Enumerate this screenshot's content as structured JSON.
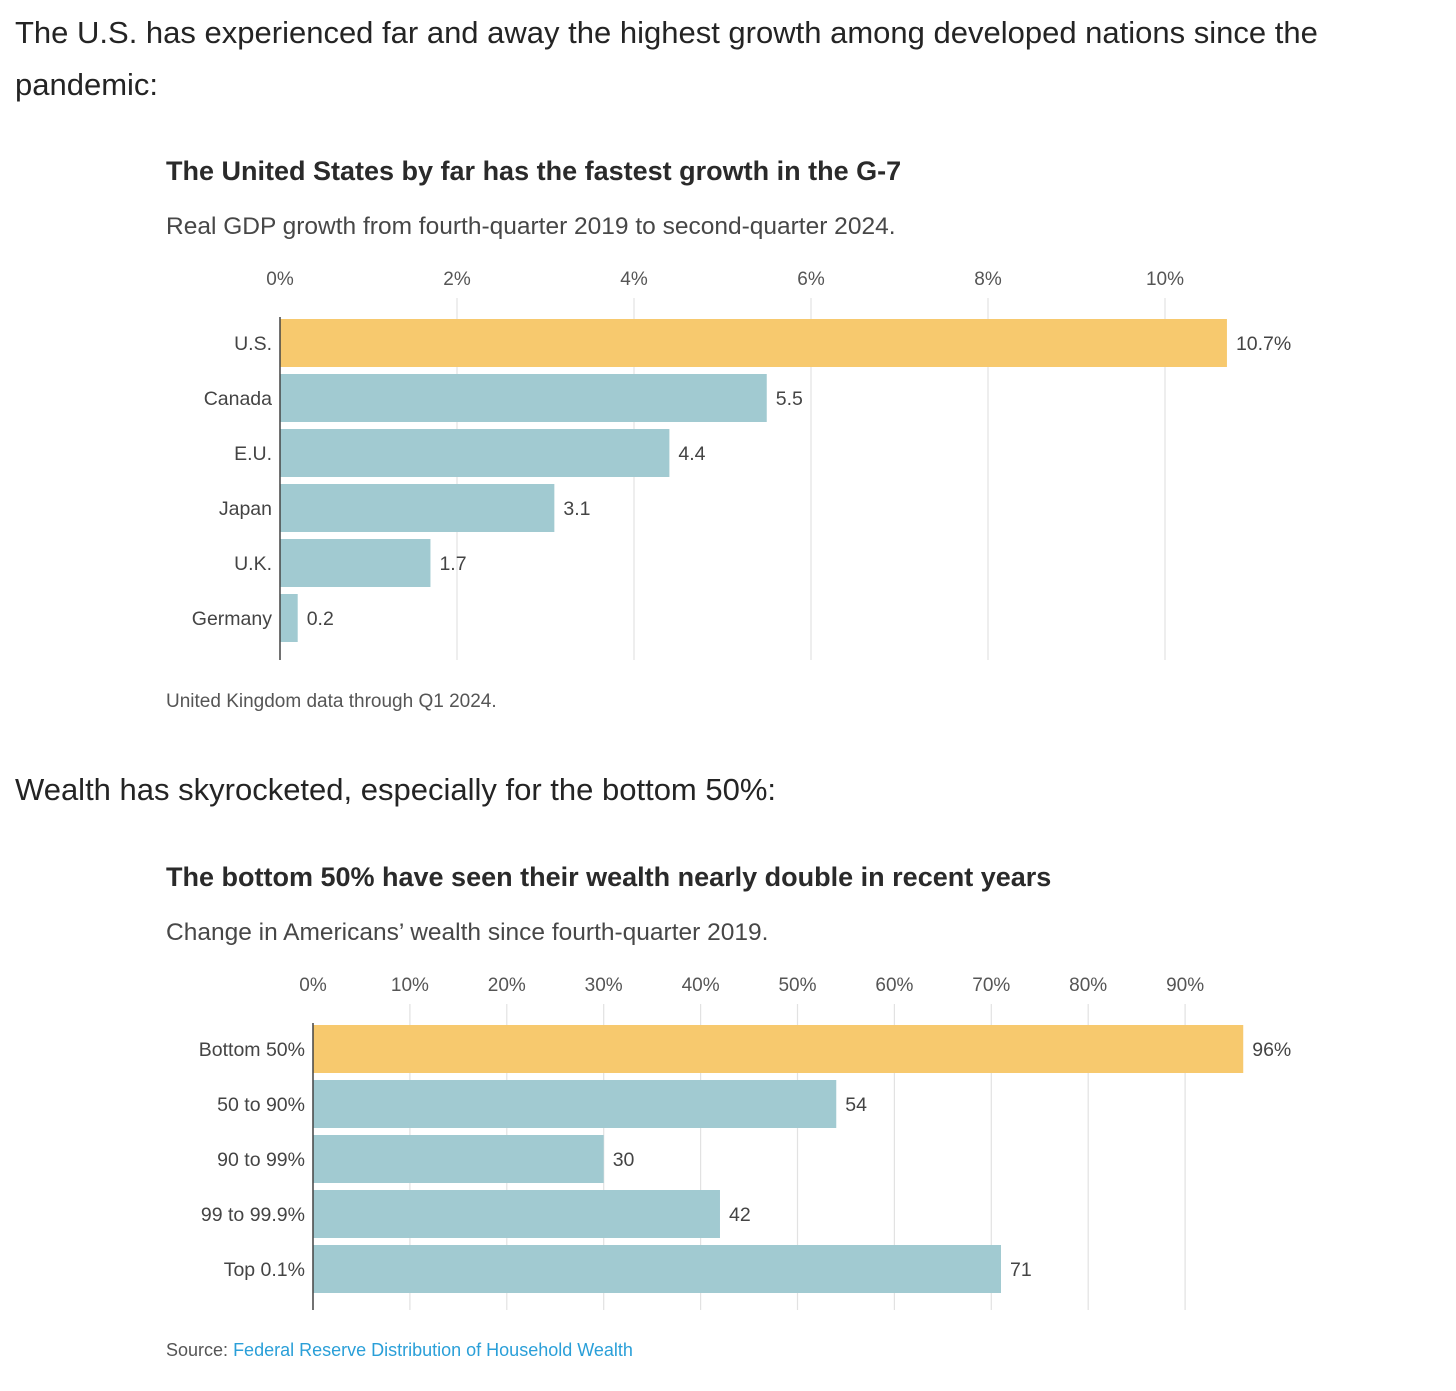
{
  "intro_paragraph": "The U.S. has experienced far and away the highest growth among developed nations since the pandemic:",
  "second_paragraph": "Wealth has skyrocketed, especially for the bottom 50%:",
  "colors": {
    "highlight": "#f7c96e",
    "bar": "#a1cad1",
    "link": "#2a9fd8"
  },
  "chart_data": [
    {
      "type": "bar",
      "orientation": "horizontal",
      "title": "The United States by far has the fastest growth in the G-7",
      "subtitle": "Real GDP growth from fourth-quarter 2019 to second-quarter 2024.",
      "categories": [
        "U.S.",
        "Canada",
        "E.U.",
        "Japan",
        "U.K.",
        "Germany"
      ],
      "values": [
        10.7,
        5.5,
        4.4,
        3.1,
        1.7,
        0.2
      ],
      "value_labels": [
        "10.7%",
        "5.5",
        "4.4",
        "3.1",
        "1.7",
        "0.2"
      ],
      "highlight_index": 0,
      "xlim": [
        0,
        11
      ],
      "ticks": [
        0,
        2,
        4,
        6,
        8,
        10
      ],
      "tick_labels": [
        "0%",
        "2%",
        "4%",
        "6%",
        "8%",
        "10%"
      ],
      "xlabel": "",
      "ylabel": "",
      "grid": true,
      "note": "United Kingdom data through Q1 2024."
    },
    {
      "type": "bar",
      "orientation": "horizontal",
      "title": "The bottom 50% have seen their wealth nearly double in recent years",
      "subtitle": "Change in Americans’ wealth since fourth-quarter 2019.",
      "categories": [
        "Bottom 50%",
        "50 to 90%",
        "90 to 99%",
        "99 to 99.9%",
        "Top 0.1%"
      ],
      "values": [
        96,
        54,
        30,
        42,
        71
      ],
      "value_labels": [
        "96%",
        "54",
        "30",
        "42",
        "71"
      ],
      "highlight_index": 0,
      "xlim": [
        0,
        98
      ],
      "ticks": [
        0,
        10,
        20,
        30,
        40,
        50,
        60,
        70,
        80,
        90
      ],
      "tick_labels": [
        "0%",
        "10%",
        "20%",
        "30%",
        "40%",
        "50%",
        "60%",
        "70%",
        "80%",
        "90%"
      ],
      "xlabel": "",
      "ylabel": "",
      "grid": true,
      "source_label": "Source:",
      "source_link": "Federal Reserve Distribution of Household Wealth"
    }
  ]
}
